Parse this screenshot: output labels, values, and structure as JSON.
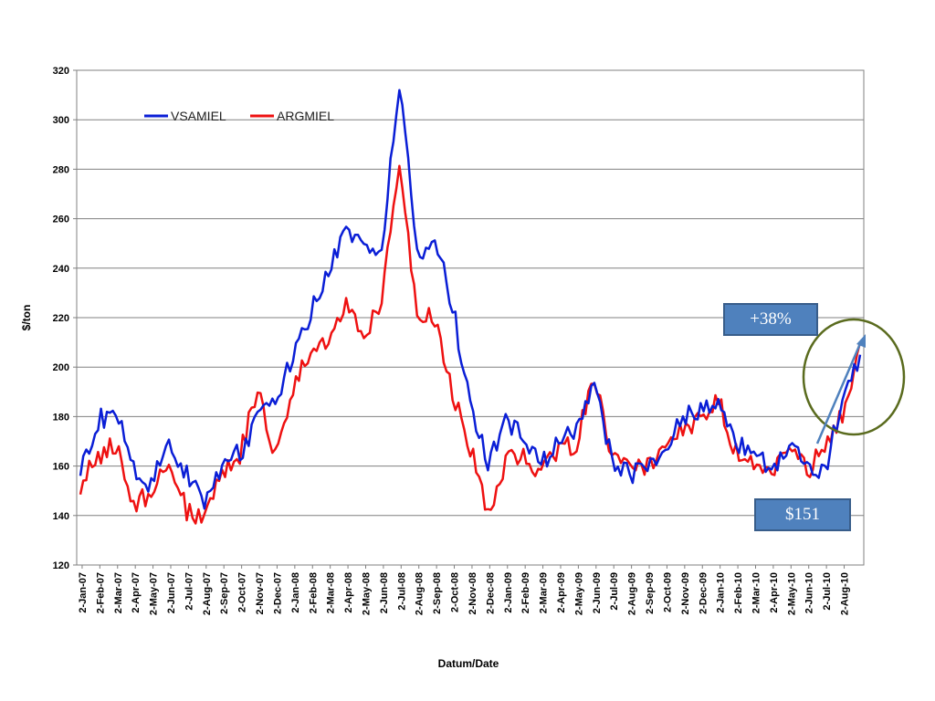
{
  "chart_data": {
    "type": "line",
    "title": "",
    "xlabel": "Datum/Date",
    "ylabel": "$/ton",
    "ylim": [
      120,
      320
    ],
    "yticks": [
      120,
      140,
      160,
      180,
      200,
      220,
      240,
      260,
      280,
      300,
      320
    ],
    "grid": "horizontal",
    "legend_position": "top-left",
    "x_tick_labels": [
      "2-Jan-07",
      "2-Feb-07",
      "2-Mar-07",
      "2-Apr-07",
      "2-May-07",
      "2-Jun-07",
      "2-Jul-07",
      "2-Aug-07",
      "2-Sep-07",
      "2-Oct-07",
      "2-Nov-07",
      "2-Dec-07",
      "2-Jan-08",
      "2-Feb-08",
      "2-Mar-08",
      "2-Apr-08",
      "2-May-08",
      "2-Jun-08",
      "2-Jul-08",
      "2-Aug-08",
      "2-Sep-08",
      "2-Oct-08",
      "2-Nov-08",
      "2-Dec-08",
      "2-Jan-09",
      "2-Feb-09",
      "2-Mar-09",
      "2-Apr-09",
      "2-May-09",
      "2-Jun-09",
      "2-Jul-09",
      "2-Aug-09",
      "2-Sep-09",
      "2-Oct-09",
      "2-Nov-09",
      "2-Dec-09",
      "2-Jan-10",
      "2-Feb-10",
      "2-Mar-10",
      "2-Apr-10",
      "2-May-10",
      "2-Jun-10",
      "2-Jul-10",
      "2-Aug-10"
    ],
    "x": [
      "2007-01",
      "2007-02",
      "2007-03",
      "2007-04",
      "2007-05",
      "2007-06",
      "2007-07",
      "2007-08",
      "2007-09",
      "2007-10",
      "2007-11",
      "2007-12",
      "2008-01",
      "2008-02",
      "2008-03",
      "2008-04",
      "2008-05",
      "2008-06",
      "2008-07",
      "2008-08",
      "2008-09",
      "2008-10",
      "2008-11",
      "2008-12",
      "2009-01",
      "2009-02",
      "2009-03",
      "2009-04",
      "2009-05",
      "2009-06",
      "2009-07",
      "2009-08",
      "2009-09",
      "2009-10",
      "2009-11",
      "2009-12",
      "2010-01",
      "2010-02",
      "2010-03",
      "2010-04",
      "2010-05",
      "2010-06",
      "2010-07",
      "2010-08",
      "2010-09"
    ],
    "series": [
      {
        "name": "VSAMIEL",
        "color": "#0a1ed6",
        "values": [
          160,
          178,
          183,
          160,
          152,
          170,
          157,
          145,
          160,
          165,
          180,
          185,
          205,
          222,
          238,
          255,
          250,
          245,
          315,
          245,
          255,
          225,
          185,
          160,
          180,
          170,
          162,
          168,
          175,
          195,
          162,
          157,
          157,
          168,
          180,
          182,
          186,
          170,
          165,
          160,
          168,
          162,
          158,
          188,
          205
        ]
      },
      {
        "name": "ARGMIEL",
        "color": "#ee1111",
        "values": [
          152,
          165,
          168,
          143,
          150,
          160,
          142,
          140,
          158,
          165,
          190,
          165,
          190,
          208,
          210,
          225,
          212,
          225,
          282,
          220,
          220,
          188,
          168,
          140,
          162,
          165,
          158,
          165,
          170,
          195,
          163,
          160,
          160,
          168,
          175,
          178,
          188,
          165,
          162,
          158,
          168,
          158,
          168,
          180,
          210
        ]
      }
    ],
    "annotations": {
      "pct_label": "+38%",
      "low_label": "$151"
    }
  }
}
